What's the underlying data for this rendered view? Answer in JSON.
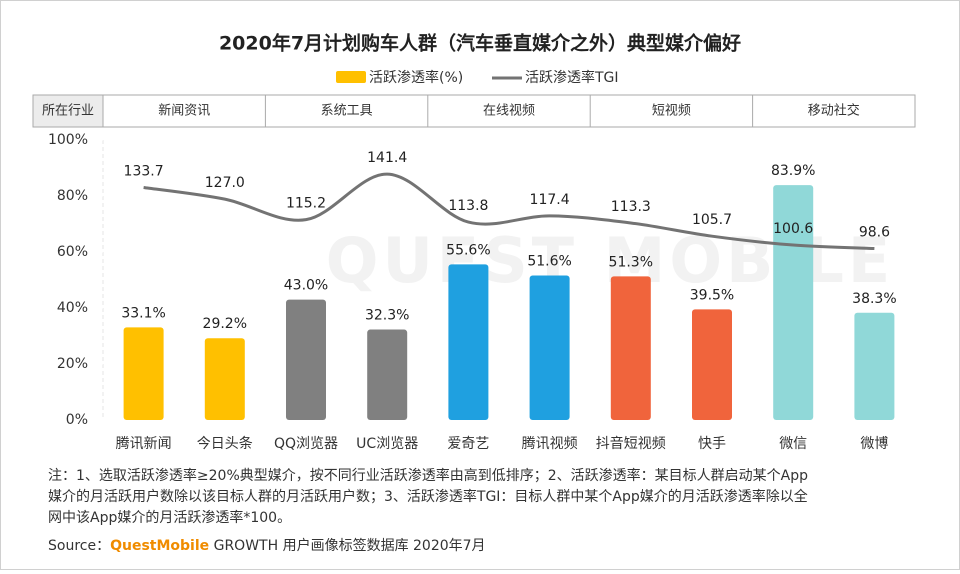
{
  "chart_data": {
    "type": "bar",
    "title": "2020年7月计划购车人群（汽车垂直媒介之外）典型媒介偏好",
    "watermark": "QUEST MOBILE",
    "group_header": "所在行业",
    "groups": [
      "新闻资讯",
      "系统工具",
      "在线视频",
      "短视频",
      "移动社交"
    ],
    "categories": [
      "腾讯新闻",
      "今日头条",
      "QQ浏览器",
      "UC浏览器",
      "爱奇艺",
      "腾讯视频",
      "抖音短视频",
      "快手",
      "微信",
      "微博"
    ],
    "series": [
      {
        "name": "活跃渗透率(%)",
        "type": "bar",
        "color": "#ffc000",
        "colors": [
          "#ffc000",
          "#ffc000",
          "#808080",
          "#808080",
          "#1fa0e0",
          "#1fa0e0",
          "#f0643c",
          "#f0643c",
          "#90d8d8",
          "#90d8d8"
        ],
        "values": [
          33.1,
          29.2,
          43.0,
          32.3,
          55.6,
          51.6,
          51.3,
          39.5,
          83.9,
          38.3
        ],
        "value_labels": [
          "33.1%",
          "29.2%",
          "43.0%",
          "32.3%",
          "55.6%",
          "51.6%",
          "51.3%",
          "39.5%",
          "83.9%",
          "38.3%"
        ]
      },
      {
        "name": "活跃渗透率TGI",
        "type": "line",
        "axis": "y2",
        "color": "#737373",
        "values": [
          133.7,
          127.0,
          115.2,
          141.4,
          113.8,
          117.4,
          113.3,
          105.7,
          100.6,
          98.6
        ],
        "value_labels": [
          "133.7",
          "127.0",
          "115.2",
          "141.4",
          "113.8",
          "117.4",
          "113.3",
          "105.7",
          "100.6",
          "98.6"
        ]
      }
    ],
    "ylim": [
      0,
      100
    ],
    "yticks": [
      {
        "value": 0,
        "label": "0%"
      },
      {
        "value": 20,
        "label": "20%"
      },
      {
        "value": 40,
        "label": "40%"
      },
      {
        "value": 60,
        "label": "60%"
      },
      {
        "value": 80,
        "label": "80%"
      },
      {
        "value": 100,
        "label": "100%"
      }
    ],
    "y2lim": [
      0,
      161
    ],
    "notes": [
      "注：1、选取活跃渗透率≥20%典型媒介，按不同行业活跃渗透率由高到低排序；2、活跃渗透率：某目标人群启动某个App",
      "媒介的月活跃用户数除以该目标人群的月活跃用户数；3、活跃渗透率TGI：目标人群中某个App媒介的月活跃渗透率除以全",
      "网中该App媒介的月活跃渗透率*100。"
    ],
    "source": {
      "prefix": "Source：",
      "brand": "QuestMobile",
      "text": " GROWTH 用户画像标签数据库 2020年7月"
    }
  }
}
